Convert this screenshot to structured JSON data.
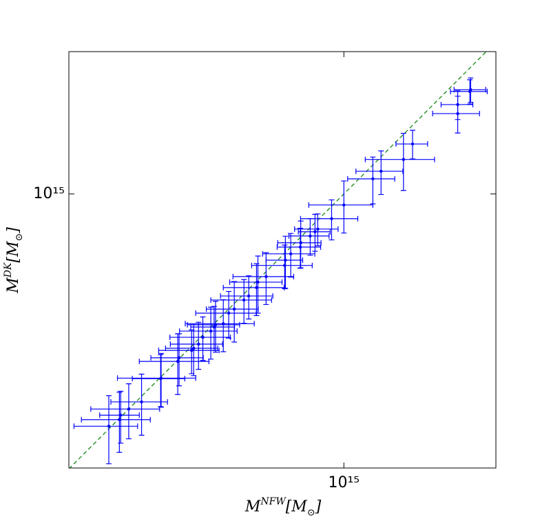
{
  "chart_data": {
    "type": "errorbar-scatter",
    "xlabel": [
      "M",
      "NFW",
      "[M",
      "⊙",
      "]"
    ],
    "ylabel": [
      "M",
      "DK",
      "[M",
      "⊙",
      "]"
    ],
    "xscale": "log",
    "yscale": "log",
    "xlim": [
      192000000000000.0,
      2490000000000000.0
    ],
    "ylim": [
      193000000000000.0,
      2350000000000000.0
    ],
    "xticks": [
      {
        "value": 1000000000000000.0,
        "label": "10¹⁵"
      }
    ],
    "yticks": [
      {
        "value": 1000000000000000.0,
        "label": "10¹⁵"
      }
    ],
    "identity_line": true,
    "identity_color": "#008000",
    "series": [
      {
        "color": "#0000ff",
        "x": [
          244000000000000.0,
          260000000000000.0,
          262000000000000.0,
          275000000000000.0,
          297000000000000.0,
          333000000000000.0,
          334000000000000.0,
          369000000000000.0,
          372000000000000.0,
          401000000000000.0,
          406000000000000.0,
          418000000000000.0,
          429000000000000.0,
          450000000000000.0,
          459000000000000.0,
          463000000000000.0,
          485000000000000.0,
          501000000000000.0,
          518000000000000.0,
          549000000000000.0,
          565000000000000.0,
          592000000000000.0,
          597000000000000.0,
          627000000000000.0,
          701000000000000.0,
          704000000000000.0,
          727000000000000.0,
          770000000000000.0,
          772000000000000.0,
          817000000000000.0,
          841000000000000.0,
          855000000000000.0,
          929000000000000.0,
          1000000000000000.0,
          1190000000000000.0,
          1250000000000000.0,
          1430000000000000.0,
          1510000000000000.0,
          1980000000000000.0,
          1980000000000000.0,
          2130000000000000.0,
          2140000000000000.0
        ],
        "y": [
          248000000000000.0,
          258000000000000.0,
          265000000000000.0,
          275000000000000.0,
          287000000000000.0,
          330000000000000.0,
          331000000000000.0,
          366000000000000.0,
          374000000000000.0,
          391000000000000.0,
          396000000000000.0,
          406000000000000.0,
          423000000000000.0,
          439000000000000.0,
          450000000000000.0,
          456000000000000.0,
          459000000000000.0,
          489000000000000.0,
          501000000000000.0,
          529000000000000.0,
          542000000000000.0,
          570000000000000.0,
          589000000000000.0,
          609000000000000.0,
          651000000000000.0,
          672000000000000.0,
          698000000000000.0,
          727000000000000.0,
          746000000000000.0,
          777000000000000.0,
          797000000000000.0,
          810000000000000.0,
          862000000000000.0,
          936000000000000.0,
          1095000000000000.0,
          1146000000000000.0,
          1230000000000000.0,
          1350000000000000.0,
          1620000000000000.0,
          1710000000000000.0,
          1850000000000000.0,
          1870000000000000.0
        ],
        "xerr": [
          46000000000000.0,
          53000000000000.0,
          31000000000000.0,
          56000000000000.0,
          50000000000000.0,
          52000000000000.0,
          77000000000000.0,
          76000000000000.0,
          58000000000000.0,
          72000000000000.0,
          63000000000000.0,
          65000000000000.0,
          77000000000000.0,
          77000000000000.0,
          60000000000000.0,
          72000000000000.0,
          99000000000000.0,
          90000000000000.0,
          80000000000000.0,
          99000000000000.0,
          88000000000000.0,
          107000000000000.0,
          93000000000000.0,
          113000000000000.0,
          126000000000000.0,
          77000000000000.0,
          113000000000000.0,
          100000000000000.0,
          100000000000000.0,
          98000000000000.0,
          80000000000000.0,
          111000000000000.0,
          158000000000000.0,
          190000000000000.0,
          167000000000000.0,
          175000000000000.0,
          293000000000000.0,
          143000000000000.0,
          277000000000000.0,
          188000000000000.0,
          234000000000000.0,
          203000000000000.0
        ],
        "yerr": [
          50000000000000.0,
          46000000000000.0,
          41000000000000.0,
          45000000000000.0,
          52000000000000.0,
          51000000000000.0,
          53000000000000.0,
          66000000000000.0,
          58000000000000.0,
          51000000000000.0,
          60000000000000.0,
          57000000000000.0,
          55000000000000.0,
          68000000000000.0,
          59000000000000.0,
          69000000000000.0,
          71000000000000.0,
          68000000000000.0,
          90000000000000.0,
          69000000000000.0,
          70000000000000.0,
          88000000000000.0,
          100000000000000.0,
          94000000000000.0,
          85000000000000.0,
          104000000000000.0,
          91000000000000.0,
          87000000000000.0,
          104000000000000.0,
          85000000000000.0,
          88000000000000.0,
          77000000000000.0,
          103000000000000.0,
          145000000000000.0,
          153000000000000.0,
          149000000000000.0,
          209000000000000.0,
          116000000000000.0,
          178000000000000.0,
          147000000000000.0,
          135000000000000.0,
          137000000000000.0
        ]
      }
    ]
  }
}
